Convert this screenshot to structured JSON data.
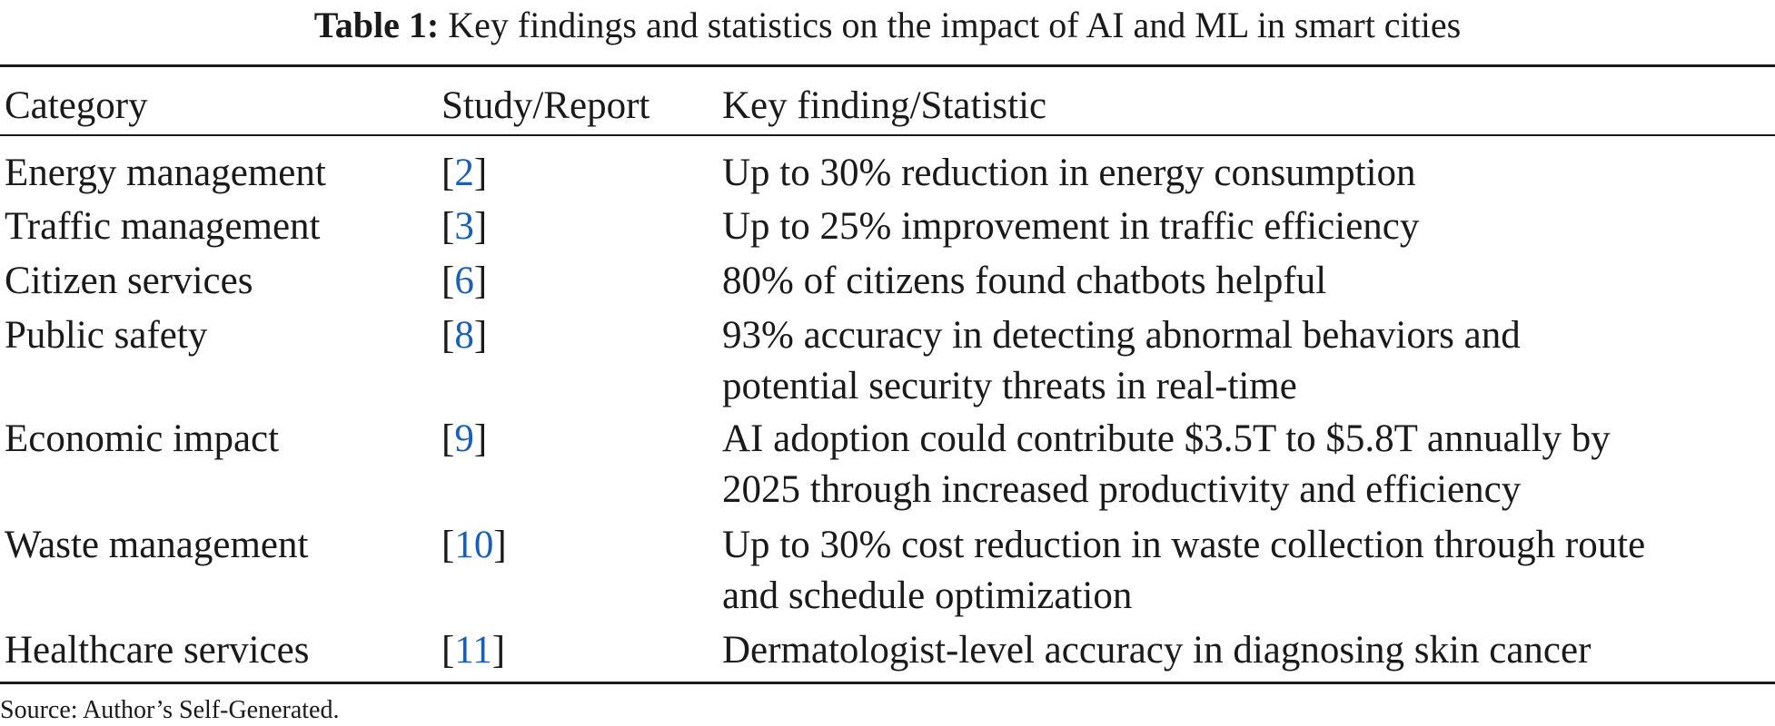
{
  "caption": {
    "label": "Table 1:",
    "text": "Key findings and statistics on the impact of AI and ML in smart cities"
  },
  "table": {
    "headers": [
      "Category",
      "Study/Report",
      "Key finding/Statistic"
    ],
    "rows": [
      {
        "category": "Energy management",
        "ref": "2",
        "finding": [
          "Up to 30% reduction in energy consumption"
        ]
      },
      {
        "category": "Traffic management",
        "ref": "3",
        "finding": [
          "Up to 25% improvement in traffic efficiency"
        ]
      },
      {
        "category": "Citizen services",
        "ref": "6",
        "finding": [
          "80% of citizens found chatbots helpful"
        ]
      },
      {
        "category": "Public safety",
        "ref": "8",
        "finding": [
          "93% accuracy in detecting abnormal behaviors and",
          "potential security threats in real-time"
        ]
      },
      {
        "category": "Economic impact",
        "ref": "9",
        "finding": [
          "AI adoption could contribute $3.5T to $5.8T annually by",
          "2025 through increased productivity and efficiency"
        ]
      },
      {
        "category": "Waste management",
        "ref": "10",
        "finding": [
          "Up to 30% cost reduction in waste collection through route",
          "and schedule optimization"
        ]
      },
      {
        "category": "Healthcare services",
        "ref": "11",
        "finding": [
          "Dermatologist-level accuracy in diagnosing skin cancer"
        ]
      }
    ]
  },
  "source": "Source: Author’s Self-Generated.",
  "colors": {
    "text": "#1a1a1a",
    "reference_link": "#1a5fb4"
  }
}
